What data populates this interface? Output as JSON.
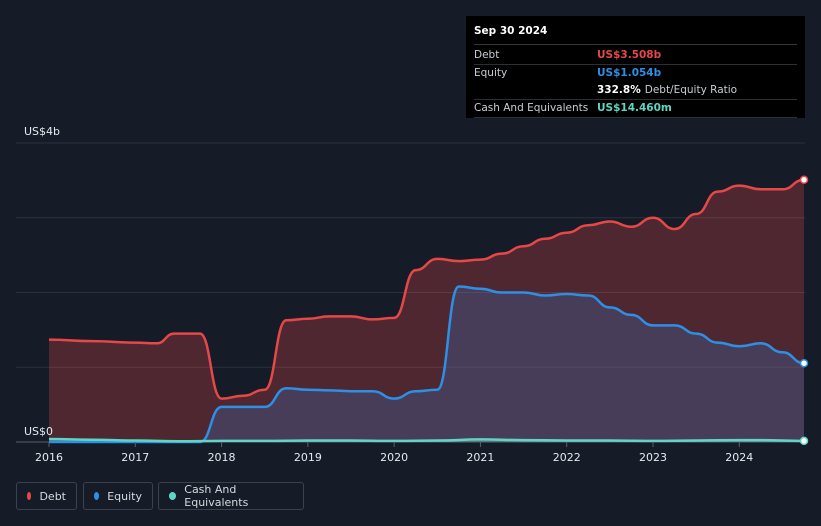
{
  "tooltip": {
    "date": "Sep 30 2024",
    "debt_label": "Debt",
    "debt_value": "US$3.508b",
    "equity_label": "Equity",
    "equity_value": "US$1.054b",
    "ratio_value": "332.8%",
    "ratio_label": "Debt/Equity Ratio",
    "cash_label": "Cash And Equivalents",
    "cash_value": "US$14.460m"
  },
  "legend": {
    "debt": "Debt",
    "equity": "Equity",
    "cash": "Cash And Equivalents"
  },
  "colors": {
    "debt": "#e64848",
    "equity": "#2d8fe6",
    "cash": "#5ed6c4"
  },
  "chart_data": {
    "type": "area",
    "title": "",
    "ylabel_top": "US$4b",
    "ylabel_bottom": "US$0",
    "ylim": [
      0,
      4
    ],
    "y_unit": "US$ billions",
    "x_ticks": [
      "2016",
      "2017",
      "2018",
      "2019",
      "2020",
      "2021",
      "2022",
      "2023",
      "2024"
    ],
    "xlim": [
      2016.0,
      2024.75
    ],
    "series": [
      {
        "name": "Debt",
        "key": "debt",
        "x": [
          2016.0,
          2016.5,
          2017.0,
          2017.25,
          2017.45,
          2017.75,
          2018.0,
          2018.25,
          2018.5,
          2018.75,
          2019.0,
          2019.25,
          2019.5,
          2019.75,
          2020.0,
          2020.25,
          2020.5,
          2020.75,
          2021.0,
          2021.25,
          2021.5,
          2021.75,
          2022.0,
          2022.25,
          2022.5,
          2022.75,
          2023.0,
          2023.25,
          2023.5,
          2023.75,
          2024.0,
          2024.25,
          2024.5,
          2024.75
        ],
        "values": [
          1.37,
          1.35,
          1.33,
          1.32,
          1.45,
          1.45,
          0.58,
          0.62,
          0.7,
          1.63,
          1.65,
          1.68,
          1.68,
          1.64,
          1.66,
          2.3,
          2.45,
          2.42,
          2.44,
          2.52,
          2.62,
          2.72,
          2.8,
          2.9,
          2.95,
          2.88,
          3.0,
          2.85,
          3.05,
          3.35,
          3.43,
          3.38,
          3.38,
          3.508
        ]
      },
      {
        "name": "Equity",
        "key": "equity",
        "x": [
          2016.0,
          2017.0,
          2017.5,
          2017.75,
          2018.0,
          2018.25,
          2018.5,
          2018.75,
          2019.0,
          2019.25,
          2019.5,
          2019.75,
          2020.0,
          2020.25,
          2020.5,
          2020.75,
          2021.0,
          2021.25,
          2021.5,
          2021.75,
          2022.0,
          2022.25,
          2022.5,
          2022.75,
          2023.0,
          2023.25,
          2023.5,
          2023.75,
          2024.0,
          2024.25,
          2024.5,
          2024.75
        ],
        "values": [
          0.0,
          0.0,
          0.0,
          0.0,
          0.47,
          0.47,
          0.47,
          0.72,
          0.7,
          0.69,
          0.68,
          0.68,
          0.58,
          0.68,
          0.7,
          2.08,
          2.05,
          2.0,
          2.0,
          1.96,
          1.98,
          1.96,
          1.8,
          1.7,
          1.56,
          1.56,
          1.45,
          1.33,
          1.28,
          1.32,
          1.2,
          1.054
        ]
      },
      {
        "name": "Cash And Equivalents",
        "key": "cash",
        "x": [
          2016.0,
          2016.5,
          2017.0,
          2017.5,
          2018.0,
          2018.5,
          2019.0,
          2019.5,
          2020.0,
          2020.5,
          2021.0,
          2021.5,
          2022.0,
          2022.5,
          2023.0,
          2023.5,
          2024.0,
          2024.25,
          2024.5,
          2024.75
        ],
        "values": [
          0.04,
          0.03,
          0.02,
          0.01,
          0.015,
          0.015,
          0.02,
          0.02,
          0.015,
          0.02,
          0.035,
          0.025,
          0.02,
          0.02,
          0.015,
          0.02,
          0.025,
          0.025,
          0.02,
          0.01446
        ]
      }
    ]
  }
}
